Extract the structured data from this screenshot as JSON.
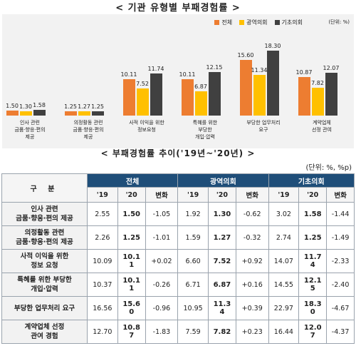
{
  "top_title": "< 기관 유형별 부패경험률 >",
  "legend": {
    "all": "전체",
    "metro": "광역의회",
    "basic": "기초의회",
    "unit": "(단위: %)"
  },
  "colors": {
    "all": "#ed7d31",
    "metro": "#ffc000",
    "basic": "#404040"
  },
  "chart_data": {
    "type": "bar",
    "title": "< 기관 유형별 부패경험률 >",
    "categories": [
      [
        "인사 관련",
        "금품·향응·편의",
        "제공"
      ],
      [
        "의정활동 관련",
        "금품·향응·편의",
        "제공"
      ],
      [
        "사적 이익을 위한",
        "정보요청"
      ],
      [
        "특혜를 위한",
        "부당한",
        "개입·압력"
      ],
      [
        "부당한 업무처리",
        "요구"
      ],
      [
        "계약업체",
        "선정 관여"
      ]
    ],
    "series": [
      {
        "name": "전체",
        "values": [
          1.5,
          1.25,
          10.11,
          10.11,
          15.6,
          10.87
        ]
      },
      {
        "name": "광역의회",
        "values": [
          1.3,
          1.27,
          7.52,
          6.87,
          11.34,
          7.82
        ]
      },
      {
        "name": "기초의회",
        "values": [
          1.58,
          1.25,
          11.74,
          12.15,
          18.3,
          12.07
        ]
      }
    ],
    "ylim": [
      0,
      20
    ]
  },
  "mid_title": "< 부패경험률 추이('19년~'20년) >",
  "table_unit": "(단위: %, %p)",
  "table": {
    "corner": "구 분",
    "groups": [
      "전체",
      "광역의회",
      "기초의회"
    ],
    "subheads": [
      "'19",
      "'20",
      "변화"
    ],
    "rows": [
      {
        "label": [
          "인사 관련",
          "금품·향응·편의 제공"
        ],
        "cells": [
          "2.55",
          "1.50",
          "-1.05",
          "1.92",
          "1.30",
          "-0.62",
          "3.02",
          "1.58",
          "-1.44"
        ]
      },
      {
        "label": [
          "의정활동 관련",
          "금품·향응·편의 제공"
        ],
        "cells": [
          "2.26",
          "1.25",
          "-1.01",
          "1.59",
          "1.27",
          "-0.32",
          "2.74",
          "1.25",
          "-1.49"
        ]
      },
      {
        "label": [
          "사적 이익을 위한",
          "정보 요청"
        ],
        "cells": [
          "10.09",
          "10.1\n1",
          "+0.02",
          "6.60",
          "7.52",
          "+0.92",
          "14.07",
          "11.7\n4",
          "-2.33"
        ]
      },
      {
        "label": [
          "특혜를 위한 부당한",
          "개입·압력"
        ],
        "cells": [
          "10.37",
          "10.1\n1",
          "-0.26",
          "6.71",
          "6.87",
          "+0.16",
          "14.55",
          "12.1\n5",
          "-2.40"
        ]
      },
      {
        "label": [
          "부당한 업무처리 요구"
        ],
        "cells": [
          "16.56",
          "15.6\n0",
          "-0.96",
          "10.95",
          "11.3\n4",
          "+0.39",
          "22.97",
          "18.3\n0",
          "-4.67"
        ]
      },
      {
        "label": [
          "계약업체 선정",
          "관여 경험"
        ],
        "cells": [
          "12.70",
          "10.8\n7",
          "-1.83",
          "7.59",
          "7.82",
          "+0.23",
          "16.44",
          "12.0\n7",
          "-4.37"
        ]
      }
    ]
  }
}
